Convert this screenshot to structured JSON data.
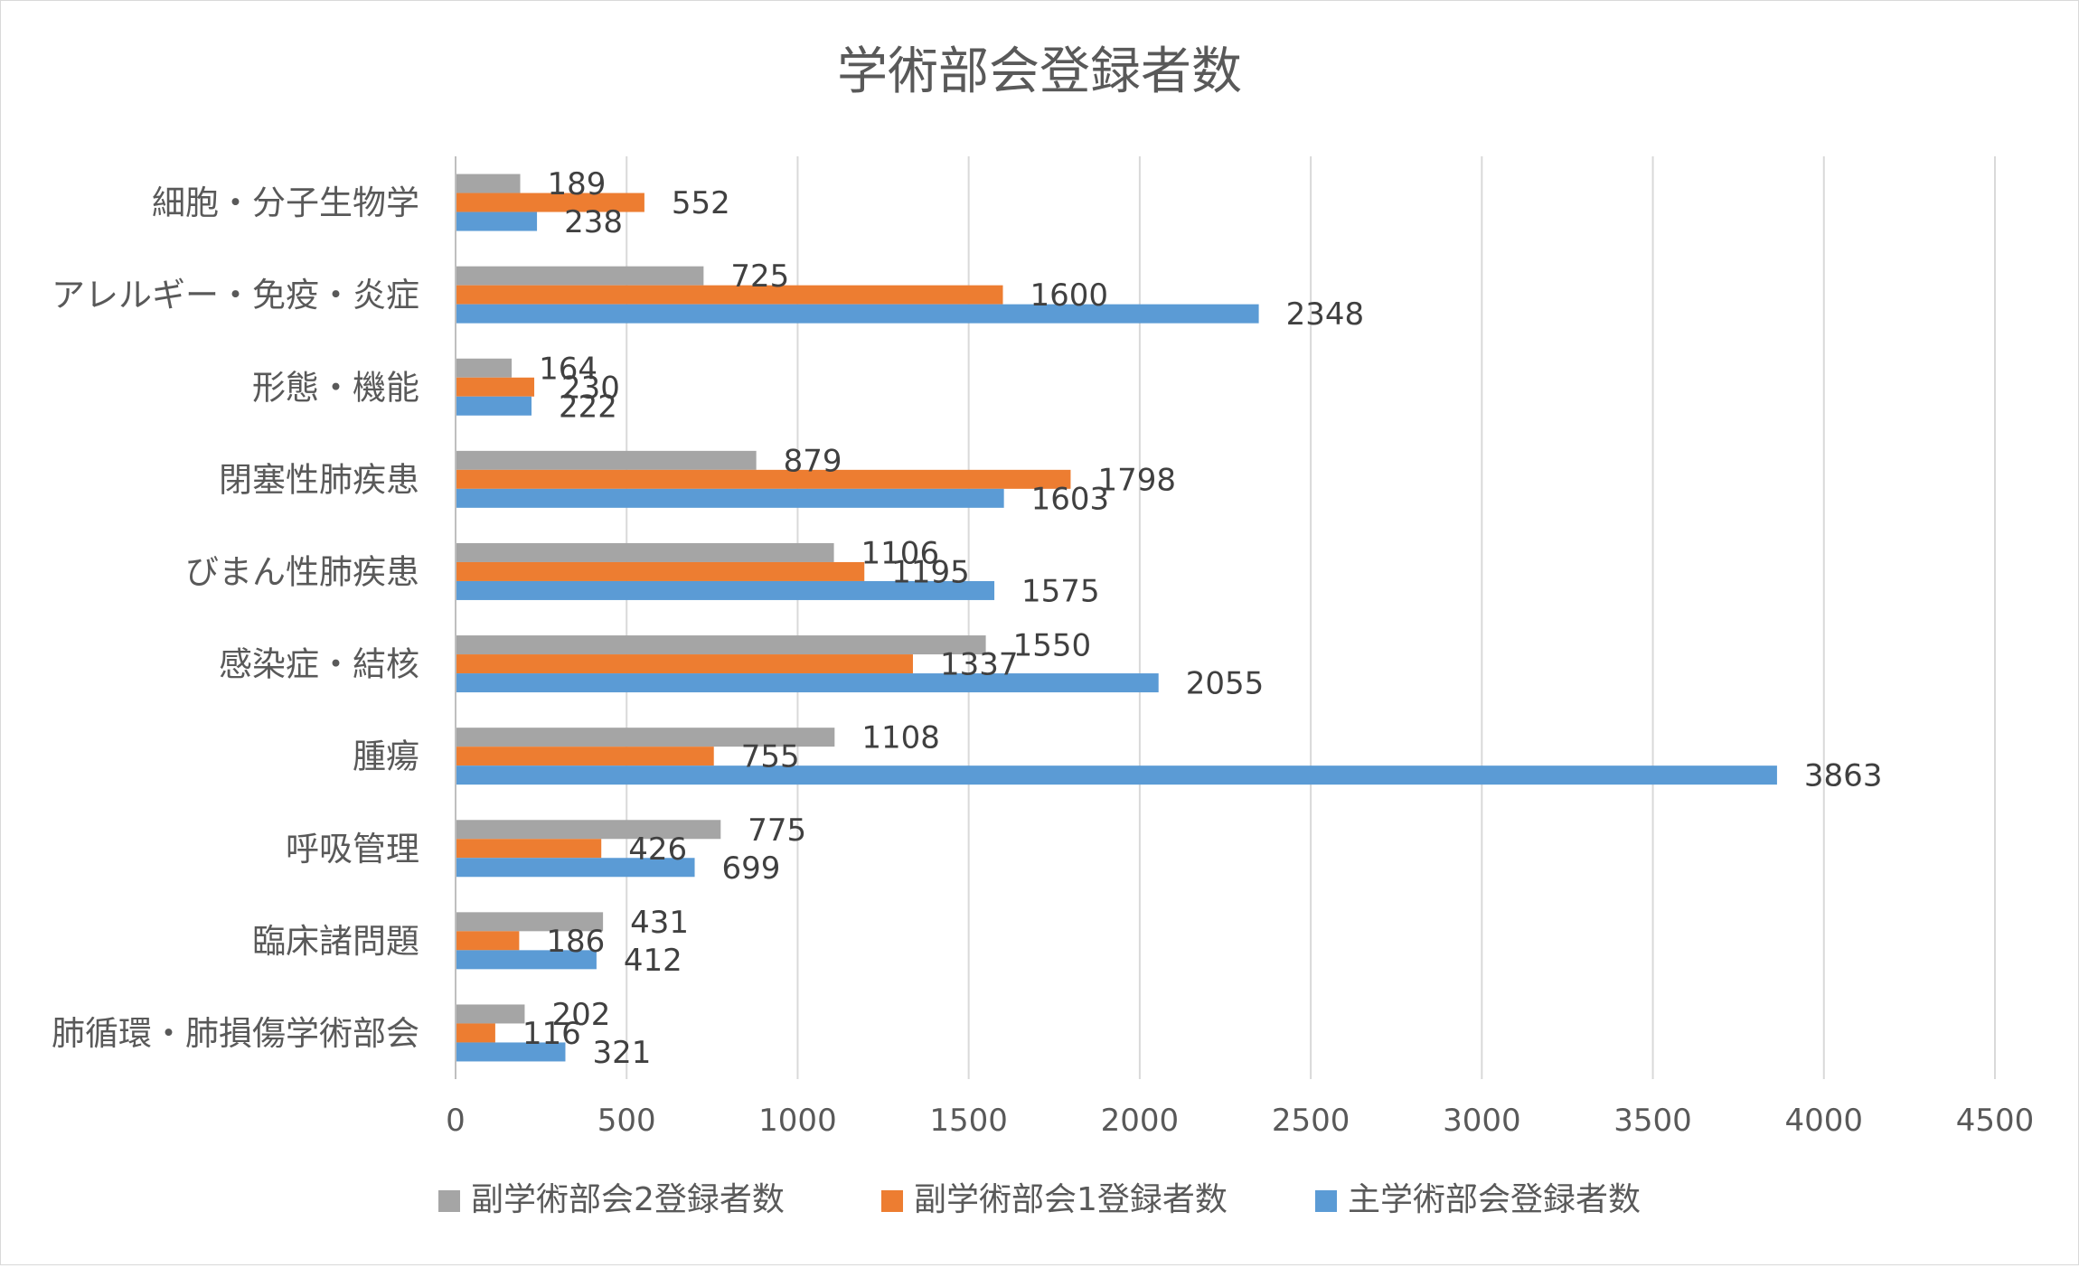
{
  "chart_data": {
    "type": "bar",
    "orientation": "horizontal",
    "title": "学術部会登録者数",
    "categories": [
      "細胞・分子生物学",
      "アレルギー・免疫・炎症",
      "形態・機能",
      "閉塞性肺疾患",
      "びまん性肺疾患",
      "感染症・結核",
      "腫瘍",
      "呼吸管理",
      "臨床諸問題",
      "肺循環・肺損傷学術部会"
    ],
    "series": [
      {
        "name": "副学術部会2登録者数",
        "color": "#a5a5a5",
        "values": [
          189,
          725,
          164,
          879,
          1106,
          1550,
          1108,
          775,
          431,
          202
        ]
      },
      {
        "name": "副学術部会1登録者数",
        "color": "#ed7d31",
        "values": [
          552,
          1600,
          230,
          1798,
          1195,
          1337,
          755,
          426,
          186,
          116
        ]
      },
      {
        "name": "主学術部会登録者数",
        "color": "#5b9bd5",
        "values": [
          238,
          2348,
          222,
          1603,
          1575,
          2055,
          3863,
          699,
          412,
          321
        ]
      }
    ],
    "xlim": [
      0,
      4500
    ],
    "xticks": [
      "0",
      "500",
      "1000",
      "1500",
      "2000",
      "2500",
      "3000",
      "3500",
      "4000",
      "4500"
    ],
    "grid": true,
    "legend": "bottom",
    "xlabel": "",
    "ylabel": ""
  }
}
